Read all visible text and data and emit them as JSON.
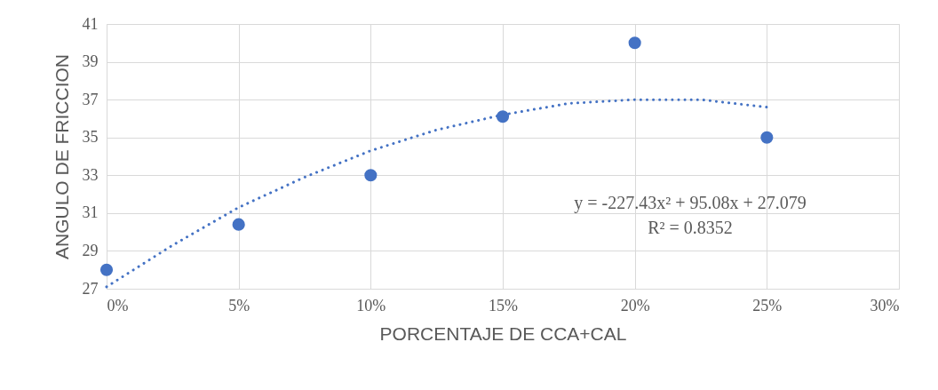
{
  "chart_data": {
    "type": "scatter",
    "xlabel": "PORCENTAJE DE CCA+CAL",
    "ylabel": "ANGULO DE FRICCION",
    "xlim": [
      0,
      0.3
    ],
    "xticks": [
      {
        "value": 0,
        "label": "0%"
      },
      {
        "value": 0.05,
        "label": "5%"
      },
      {
        "value": 0.1,
        "label": "10%"
      },
      {
        "value": 0.15,
        "label": "15%"
      },
      {
        "value": 0.2,
        "label": "20%"
      },
      {
        "value": 0.25,
        "label": "25%"
      },
      {
        "value": 0.3,
        "label": "30%"
      }
    ],
    "ylim": [
      27,
      41
    ],
    "yticks": [
      27,
      29,
      31,
      33,
      35,
      37,
      39,
      41
    ],
    "grid": true,
    "marker": "circle",
    "series": [
      {
        "color": "#4472c4",
        "x": [
          0,
          0.05,
          0.1,
          0.15,
          0.2,
          0.25
        ],
        "values": [
          28,
          30.4,
          33,
          36.1,
          40,
          35
        ]
      },
      {
        "type": "line",
        "color": "#4472c4",
        "line_style": "dotted",
        "marker": "none",
        "x": [
          0,
          0.025,
          0.05,
          0.075,
          0.1,
          0.125,
          0.15,
          0.175,
          0.2,
          0.225,
          0.25
        ],
        "values": [
          27.1,
          29.3,
          31.3,
          32.9,
          34.3,
          35.4,
          36.2,
          36.8,
          37.0,
          37.0,
          36.6
        ]
      }
    ],
    "annotations": [
      "y = -227.43x² + 95.08x + 27.079",
      "R² = 0.8352"
    ]
  }
}
